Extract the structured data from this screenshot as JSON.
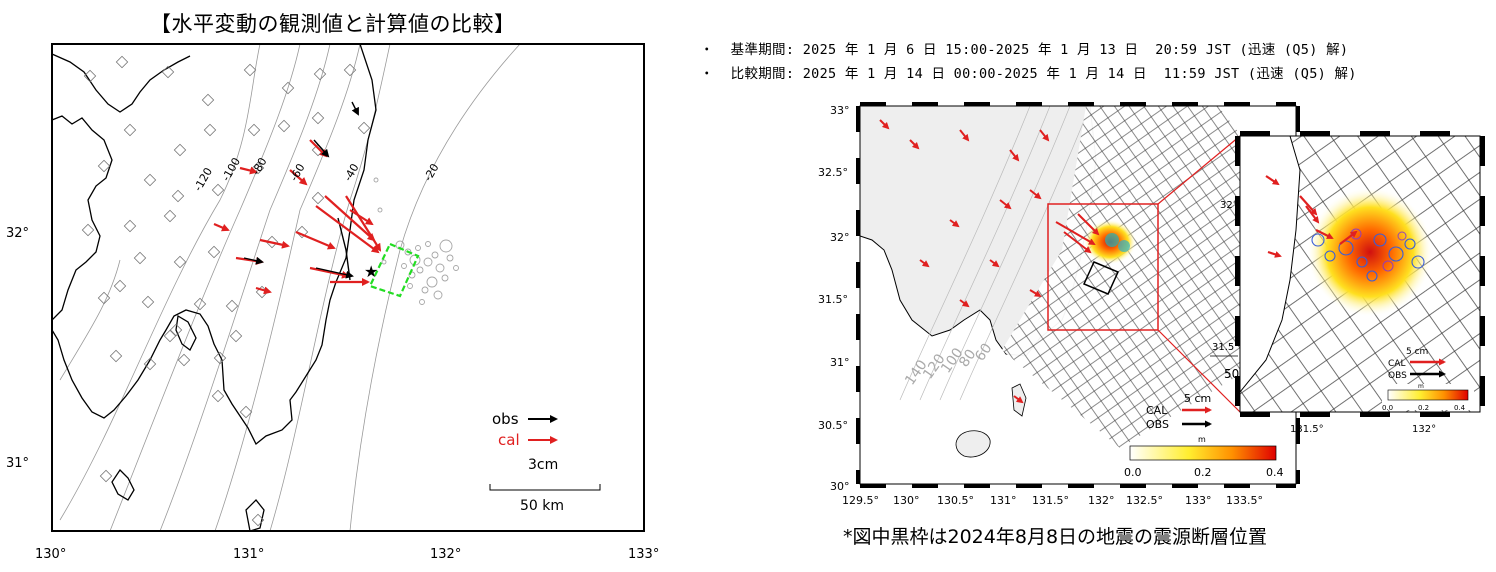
{
  "title": "【水平変動の観測値と計算値の比較】",
  "periods": [
    "・  基準期間: 2025 年 1 月 6 日 15:00-2025 年 1 月 13 日  20:59 JST (迅速 (Q5) 解)",
    "・  比較期間: 2025 年 1 月 14 日 00:00-2025 年 1 月 14 日  11:59 JST (迅速 (Q5) 解)"
  ],
  "footnote": "*図中黒枠は2024年8月8日の地震の震源断層位置",
  "left_map": {
    "x_ticks": [
      "130°",
      "131°",
      "132°",
      "133°"
    ],
    "y_ticks": [
      "32°",
      "31°"
    ],
    "contours": [
      "-120",
      "-100",
      "-80",
      "-60",
      "-40",
      "-20"
    ],
    "legend": {
      "obs": "obs",
      "cal": "cal",
      "scale": "3cm",
      "distance": "50 km"
    }
  },
  "right_map": {
    "x_ticks": [
      "129.5°",
      "130°",
      "130.5°",
      "131°",
      "131.5°",
      "132°",
      "132.5°",
      "133°",
      "133.5°"
    ],
    "y_ticks": [
      "33°",
      "32.5°",
      "32°",
      "31.5°",
      "31°",
      "30.5°",
      "30°"
    ],
    "contours": [
      "140",
      "120",
      "100",
      "80",
      "60"
    ],
    "legend": {
      "scale": "5  cm",
      "cal": "CAL",
      "obs": "OBS"
    },
    "colorbar": {
      "unit": "m",
      "ticks": [
        "0.0",
        "0.2",
        "0.4"
      ]
    },
    "inset": {
      "x_ticks": [
        "131.5°",
        "132°"
      ],
      "y_ticks": [
        "32°"
      ],
      "side_labels": [
        "31.5°",
        "50"
      ],
      "legend": {
        "scale": "5  cm",
        "cal": "CAL",
        "obs": "OBS"
      },
      "colorbar": {
        "unit": "m",
        "ticks": [
          "0.0",
          "0.2",
          "0.4"
        ]
      }
    }
  },
  "colors": {
    "cal": "#e02020",
    "obs": "#000000",
    "fault_model": "#22dd22",
    "highlight_box": "#e02020"
  }
}
